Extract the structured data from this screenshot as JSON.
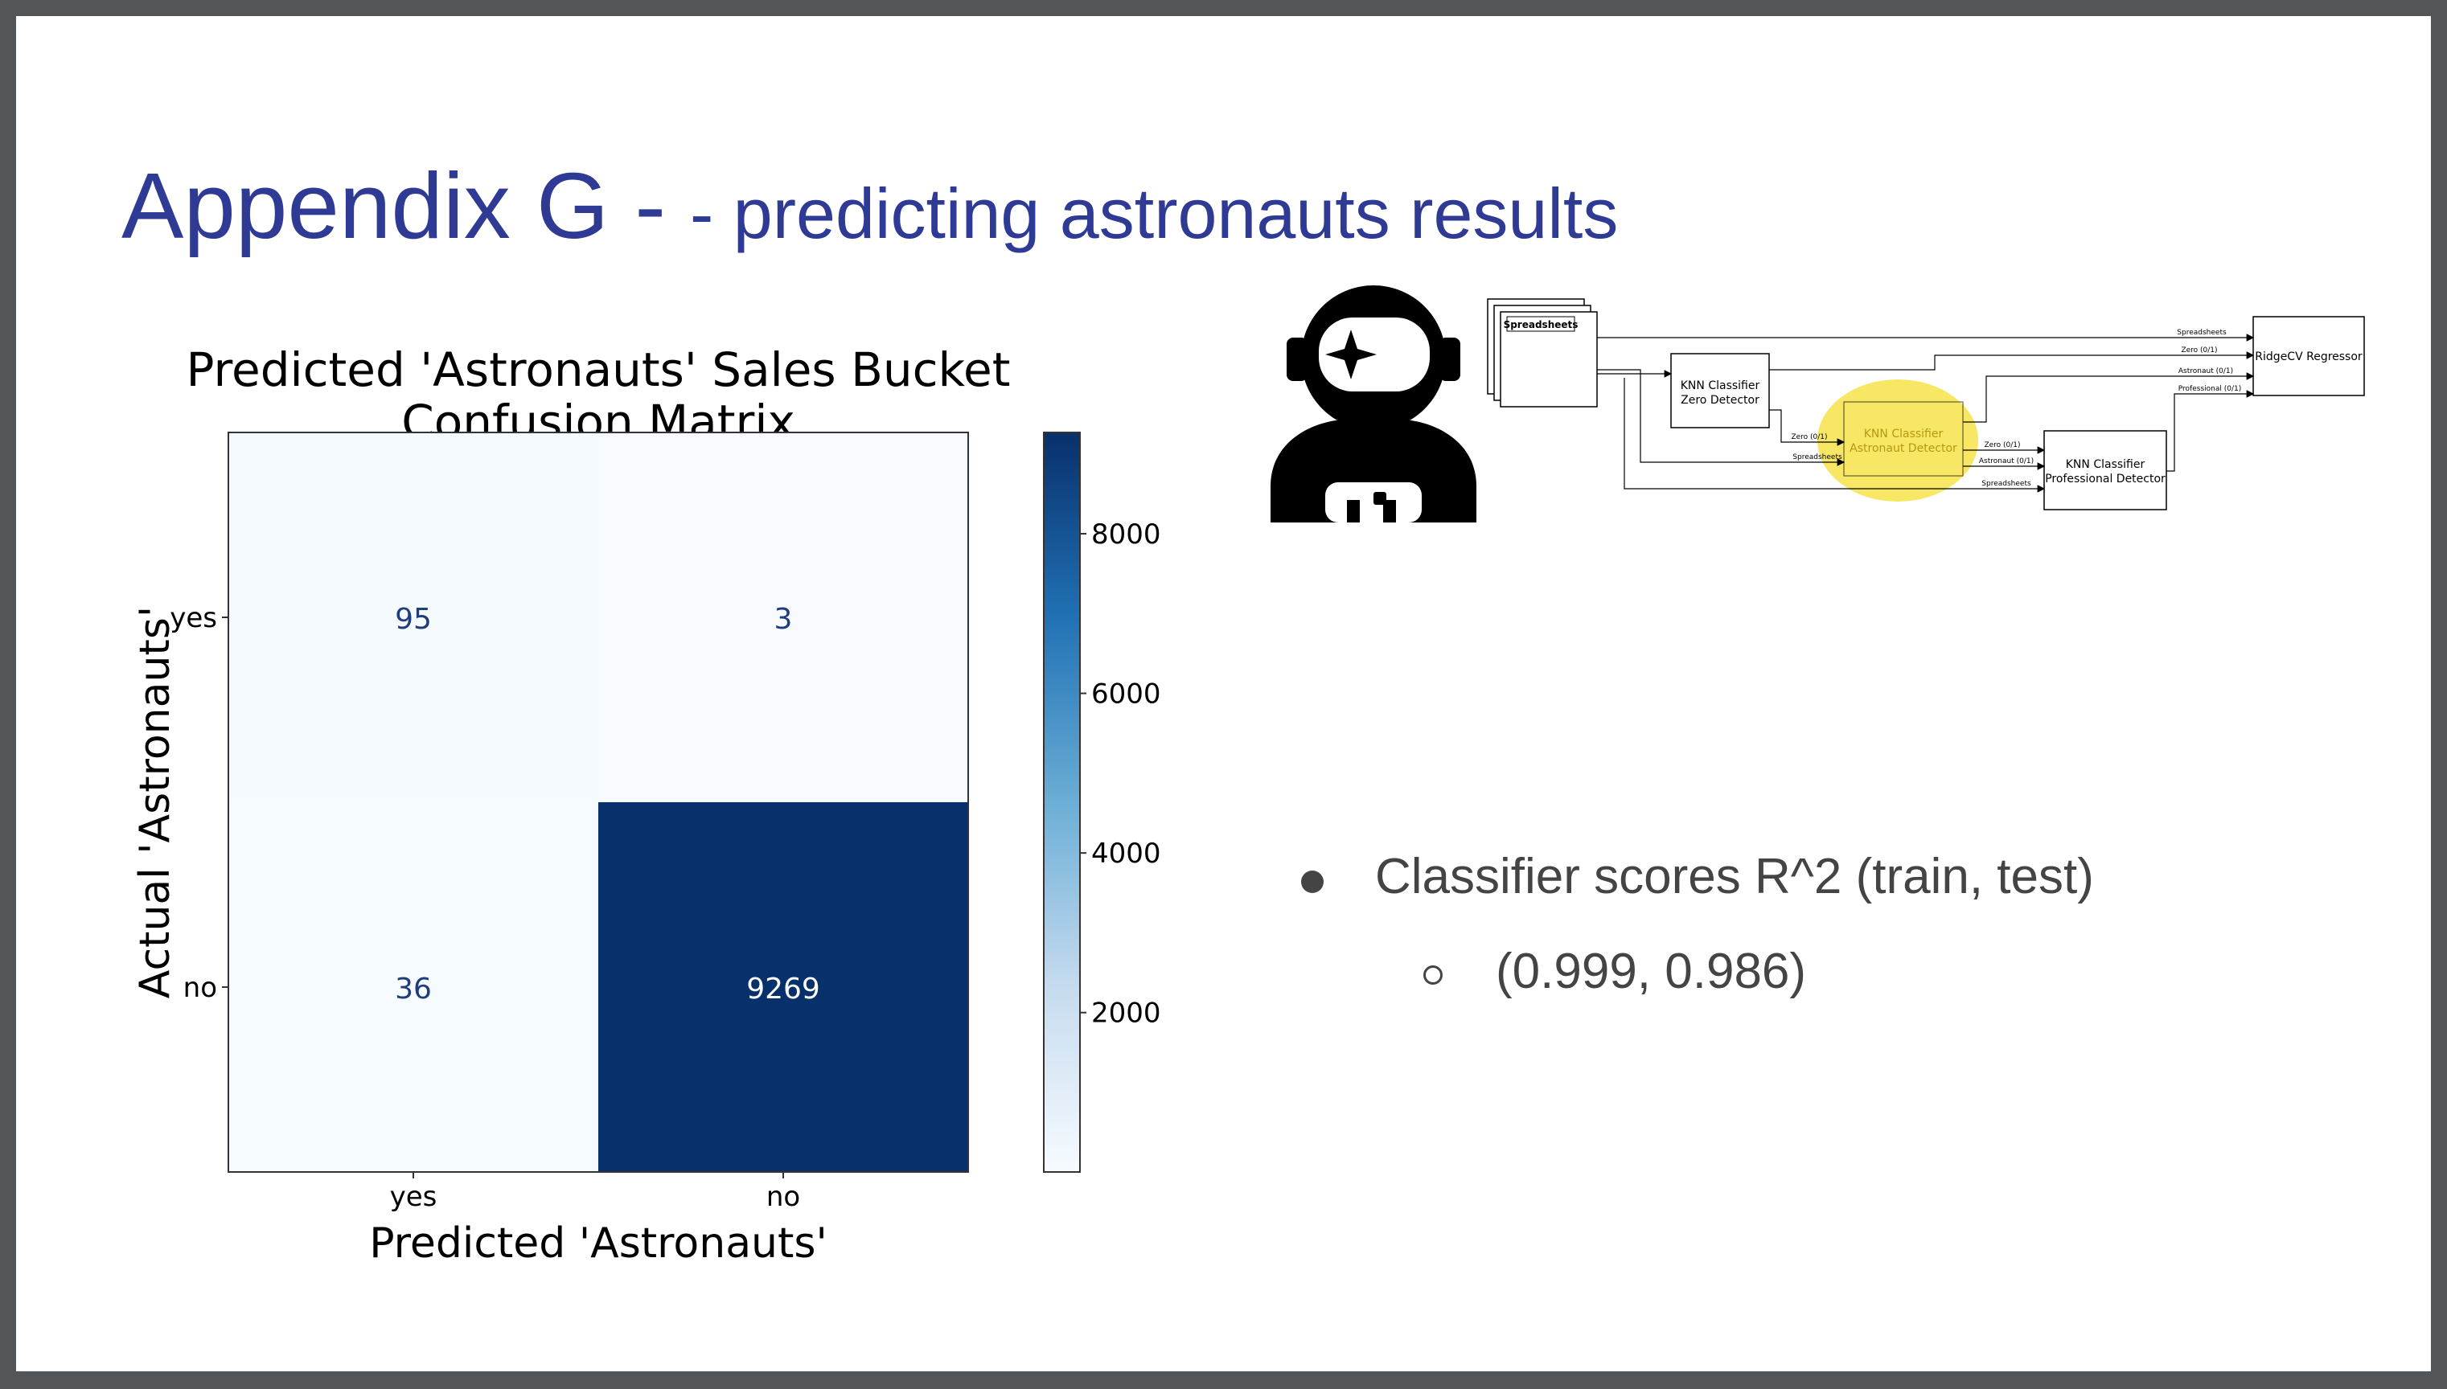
{
  "slide": {
    "title": "Appendix G -",
    "subtitle": "- predicting astronauts results"
  },
  "chart_data": {
    "type": "heatmap",
    "title_line1": "Predicted 'Astronauts' Sales Bucket",
    "title_line2": "Confusion Matrix",
    "xlabel": "Predicted 'Astronauts'",
    "ylabel": "Actual 'Astronauts'",
    "x_categories": [
      "yes",
      "no"
    ],
    "y_categories": [
      "yes",
      "no"
    ],
    "values": [
      [
        95,
        3
      ],
      [
        36,
        9269
      ]
    ],
    "colorbar": {
      "ticks": [
        8000,
        6000,
        4000,
        2000
      ],
      "min": 3,
      "max": 9269,
      "colormap": "Blues"
    }
  },
  "icon": {
    "name": "astronaut-icon"
  },
  "diagram": {
    "spreadsheets": "Spreadsheets",
    "zero_detector": [
      "KNN Classifier",
      "Zero Detector"
    ],
    "astronaut_detector": [
      "KNN Classifier",
      "Astronaut Detector"
    ],
    "professional_detector": [
      "KNN Classifier",
      "Professional Detector"
    ],
    "regressor": "RidgeCV Regressor",
    "edges": {
      "spreadsheets": "Spreadsheets",
      "zero": "Zero (0/1)",
      "astronaut": "Astronaut (0/1)",
      "professional": "Professional (0/1)"
    },
    "highlight_color": "#f7e24a"
  },
  "bullets": {
    "main": "Classifier scores R^2 (train, test)",
    "sub": "(0.999, 0.986)"
  },
  "colors": {
    "title": "#2e3a94",
    "matrix_dark": "#08306b",
    "matrix_light": "#f7fbff"
  }
}
